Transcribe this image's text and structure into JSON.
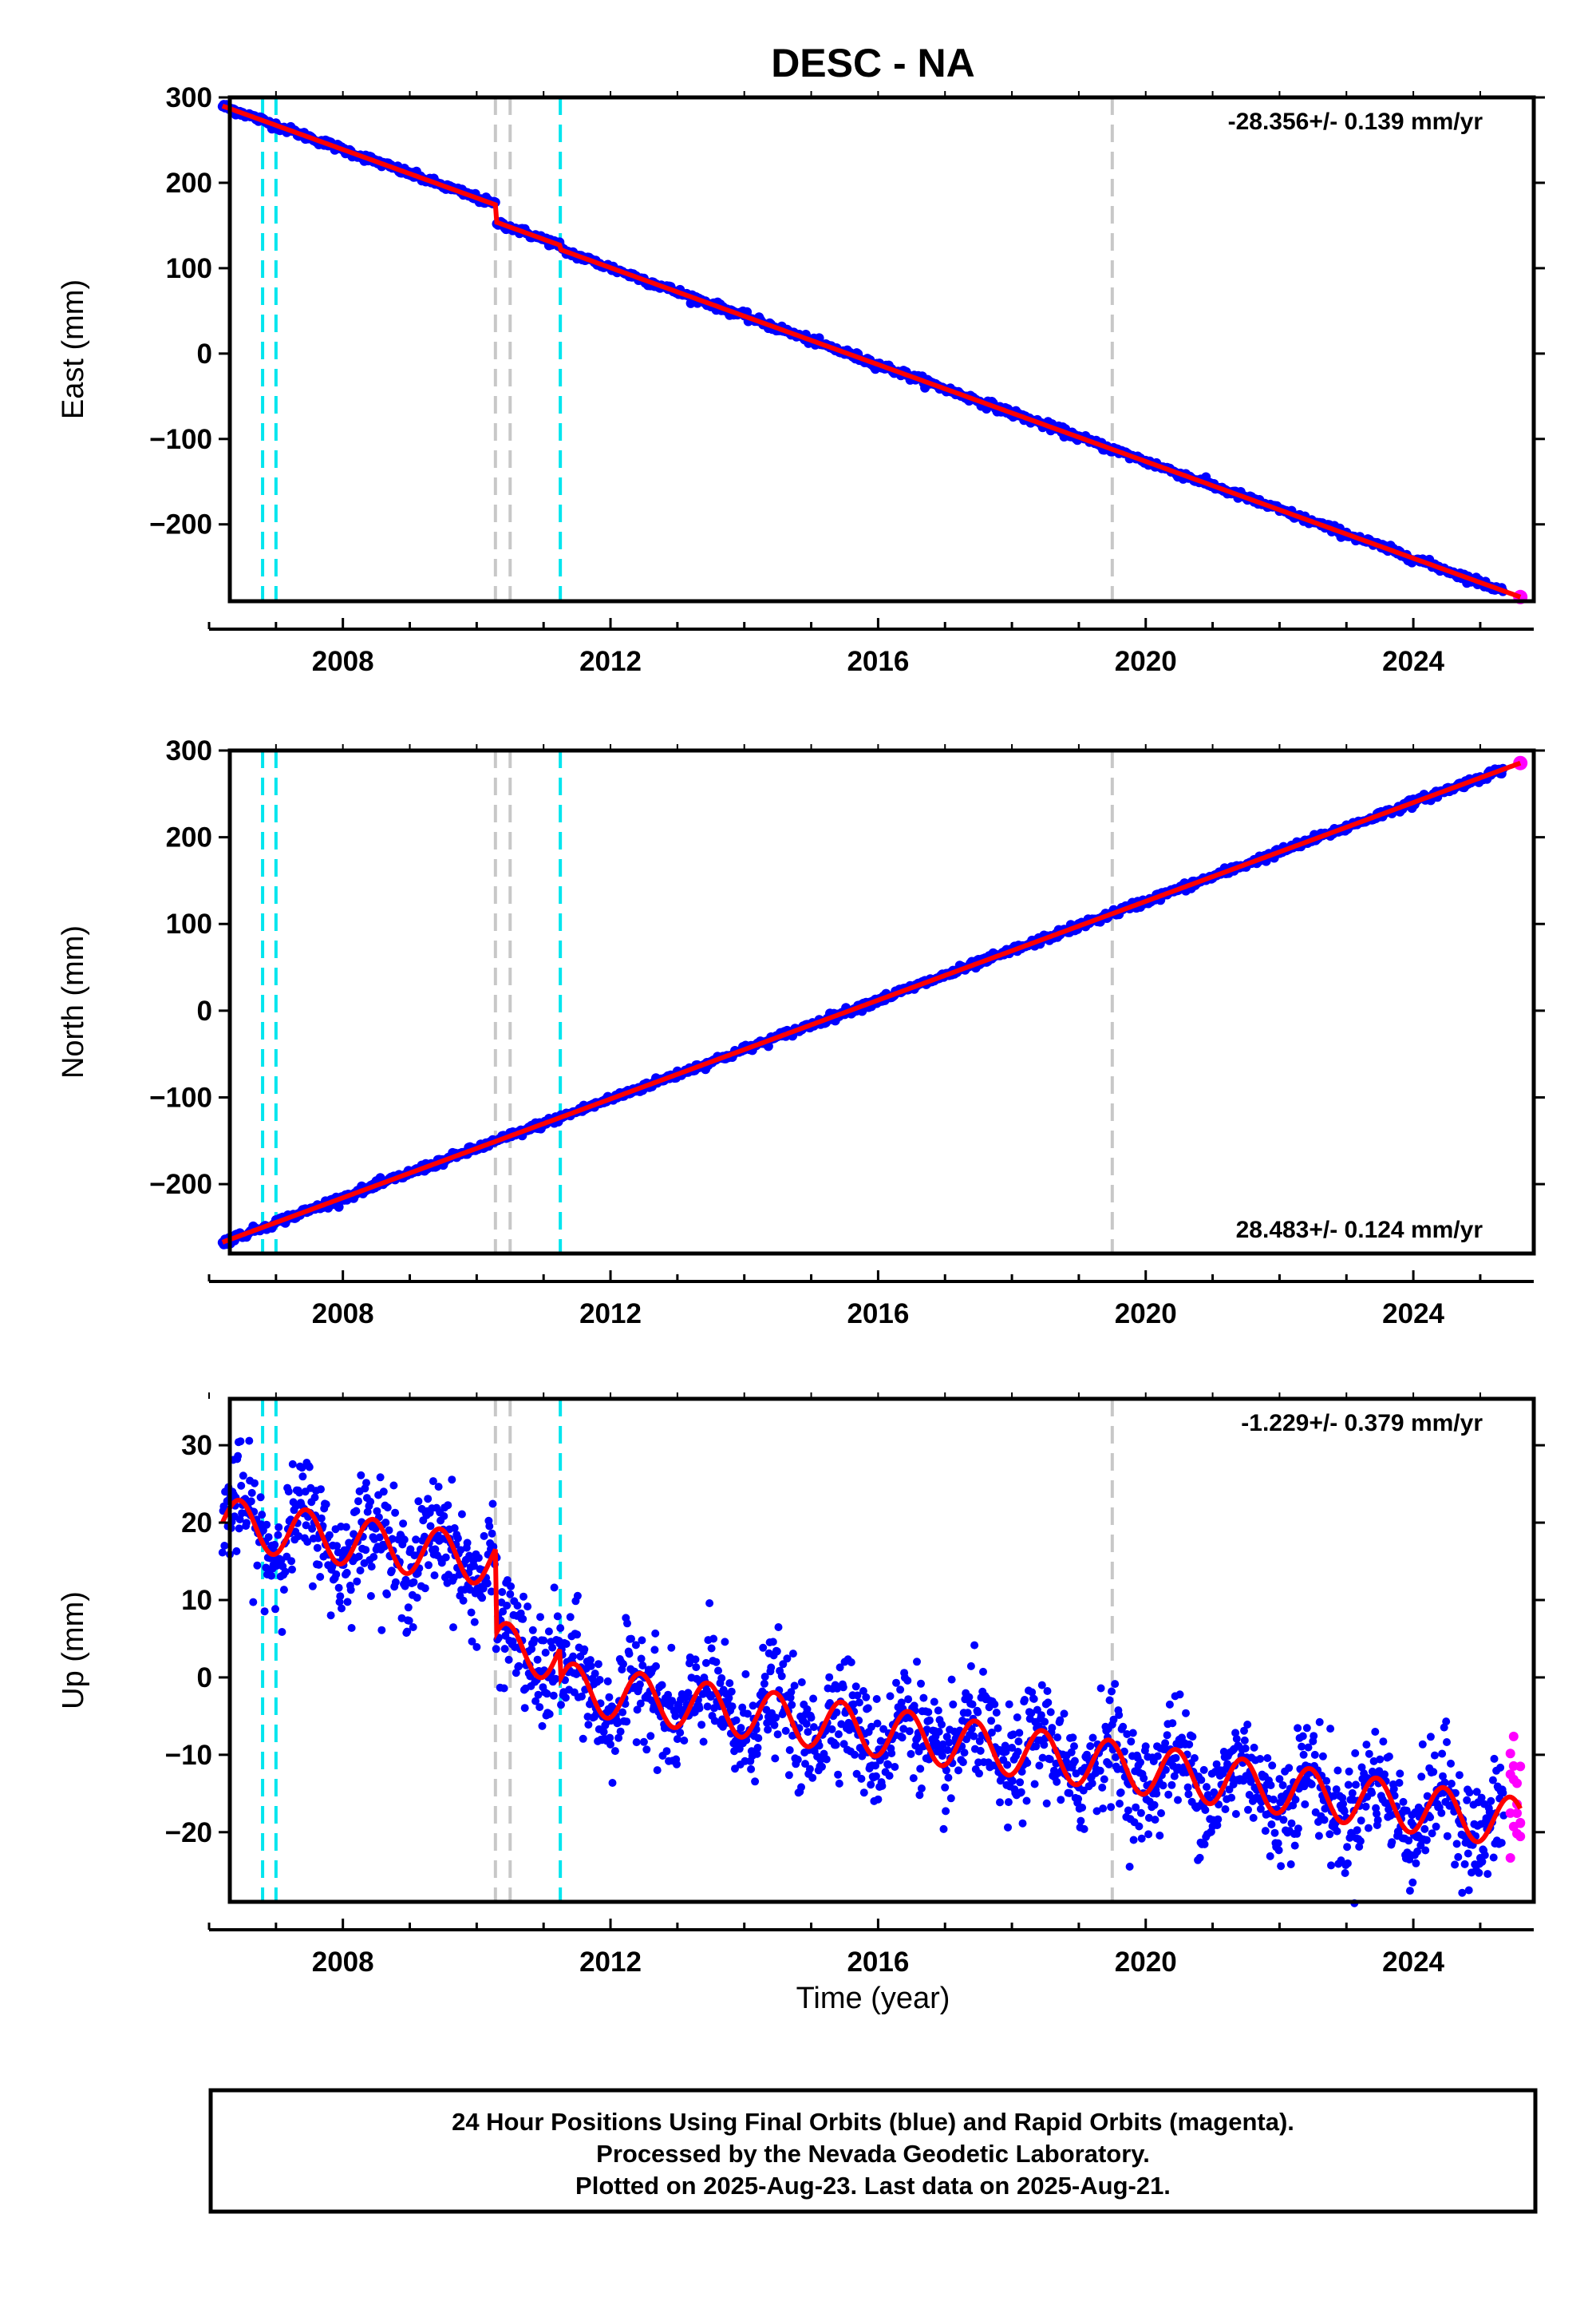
{
  "title": "DESC - NA",
  "xlabel": "Time (year)",
  "x_ticks": [
    "2008",
    "2012",
    "2016",
    "2020",
    "2024"
  ],
  "colors": {
    "final_orbits": "#0000ff",
    "rapid_orbits": "#ff00ff",
    "model_fit": "#ff0000",
    "gray_lines": "#c8c8c8",
    "cyan_lines": "#00e5ee"
  },
  "event_lines": {
    "cyan": [
      2006.8,
      2007.0,
      2011.25
    ],
    "gray": [
      2010.28,
      2010.5,
      2019.5
    ]
  },
  "footer": {
    "line1": "24 Hour Positions Using Final Orbits (blue) and Rapid Orbits (magenta).",
    "line2": "Processed by the Nevada Geodetic Laboratory.",
    "line3": "Plotted on 2025-Aug-23. Last data on 2025-Aug-21."
  },
  "chart_data": [
    {
      "type": "scatter",
      "ylabel": "East (mm)",
      "rate_text": "-28.356+/- 0.139 mm/yr",
      "ylim": [
        -290,
        300
      ],
      "xlim": [
        2006.0,
        2025.8
      ],
      "y_ticks": [
        "300",
        "200",
        "100",
        "0",
        "−100",
        "−200"
      ],
      "y_tick_values": [
        300,
        200,
        100,
        0,
        -100,
        -200
      ],
      "trend": {
        "start_x": 2006.2,
        "start_y": 290,
        "rate": -28.356,
        "end_x": 2025.6,
        "end_y": -276
      },
      "offsets": [
        {
          "x": 2010.28,
          "dy": -20
        },
        {
          "x": 2011.25,
          "dy": -5
        }
      ]
    },
    {
      "type": "scatter",
      "ylabel": "North (mm)",
      "rate_text": "28.483+/- 0.124 mm/yr",
      "ylim": [
        -280,
        300
      ],
      "xlim": [
        2006.0,
        2025.8
      ],
      "y_ticks": [
        "300",
        "200",
        "100",
        "0",
        "−100",
        "−200"
      ],
      "y_tick_values": [
        300,
        200,
        100,
        0,
        -100,
        -200
      ],
      "trend": {
        "start_x": 2006.2,
        "start_y": -267,
        "rate": 28.483,
        "end_x": 2025.6,
        "end_y": 290
      },
      "offsets": []
    },
    {
      "type": "scatter",
      "ylabel": "Up (mm)",
      "rate_text": "-1.229+/- 0.379 mm/yr",
      "ylim": [
        -29,
        36
      ],
      "xlim": [
        2006.0,
        2025.8
      ],
      "y_ticks": [
        "30",
        "20",
        "10",
        "0",
        "−10",
        "−20"
      ],
      "y_tick_values": [
        30,
        20,
        10,
        0,
        -10,
        -20
      ],
      "trend": {
        "start_x": 2006.2,
        "start_y": 20,
        "rate": -1.229,
        "end_x": 2025.6,
        "end_y": -10
      },
      "seasonal_amplitude": 3.2,
      "scatter_sd": 3.5,
      "offsets": [
        {
          "x": 2010.28,
          "dy": -11
        },
        {
          "x": 2011.25,
          "dy": -4
        }
      ]
    }
  ]
}
